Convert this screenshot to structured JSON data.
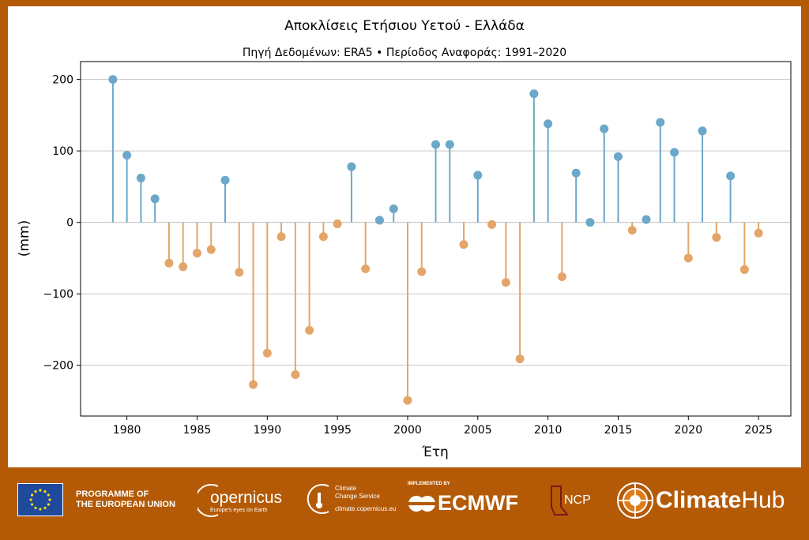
{
  "chart_data": {
    "type": "stem",
    "title": "Αποκλίσεις Ετήσιου Υετού - Ελλάδα",
    "subtitle": "Πηγή Δεδομένων: ERA5 • Περίοδος Αναφοράς: 1991–2020",
    "xlabel": "Έτη",
    "ylabel": "(mm)",
    "xlim": [
      1976.7,
      2027.3
    ],
    "ylim": [
      -271,
      225
    ],
    "xticks": [
      1980,
      1985,
      1990,
      1995,
      2000,
      2005,
      2010,
      2015,
      2020,
      2025
    ],
    "yticks": [
      -200,
      -100,
      0,
      100,
      200
    ],
    "ytick_labels": [
      "−200",
      "−100",
      "0",
      "100",
      "200"
    ],
    "grid": "horizontal",
    "colors": {
      "positive": "#6ba8c9",
      "negative": "#e3a569"
    },
    "x": [
      1979,
      1980,
      1981,
      1982,
      1983,
      1984,
      1985,
      1986,
      1987,
      1988,
      1989,
      1990,
      1991,
      1992,
      1993,
      1994,
      1995,
      1996,
      1997,
      1998,
      1999,
      2000,
      2001,
      2002,
      2003,
      2004,
      2005,
      2006,
      2007,
      2008,
      2009,
      2010,
      2011,
      2012,
      2013,
      2014,
      2015,
      2016,
      2017,
      2018,
      2019,
      2020,
      2021,
      2022,
      2023,
      2024,
      2025
    ],
    "values": [
      200,
      94,
      62,
      33,
      -57,
      -62,
      -43,
      -38,
      59,
      -70,
      -227,
      -183,
      -20,
      -213,
      -151,
      -20,
      -2,
      78,
      -65,
      3,
      19,
      -249,
      -69,
      109,
      109,
      -31,
      66,
      -3,
      -84,
      -191,
      180,
      138,
      -76,
      69,
      0,
      131,
      92,
      -11,
      4,
      140,
      98,
      -50,
      128,
      -21,
      65,
      -66,
      -15
    ]
  },
  "footer": {
    "eu": "PROGRAMME OF\nTHE EUROPEAN UNION",
    "copernicus": "opernicus",
    "copernicus_tag": "Europe's eyes on Earth",
    "c3s_1": "Climate",
    "c3s_2": "Change Service",
    "c3s_url": "climate.copernicus.eu",
    "implemented_by": "IMPLEMENTED BY",
    "ecmwf": "ECMWF",
    "ncp": "NCP",
    "climatehub_bold": "Climate",
    "climatehub_light": "Hub"
  }
}
